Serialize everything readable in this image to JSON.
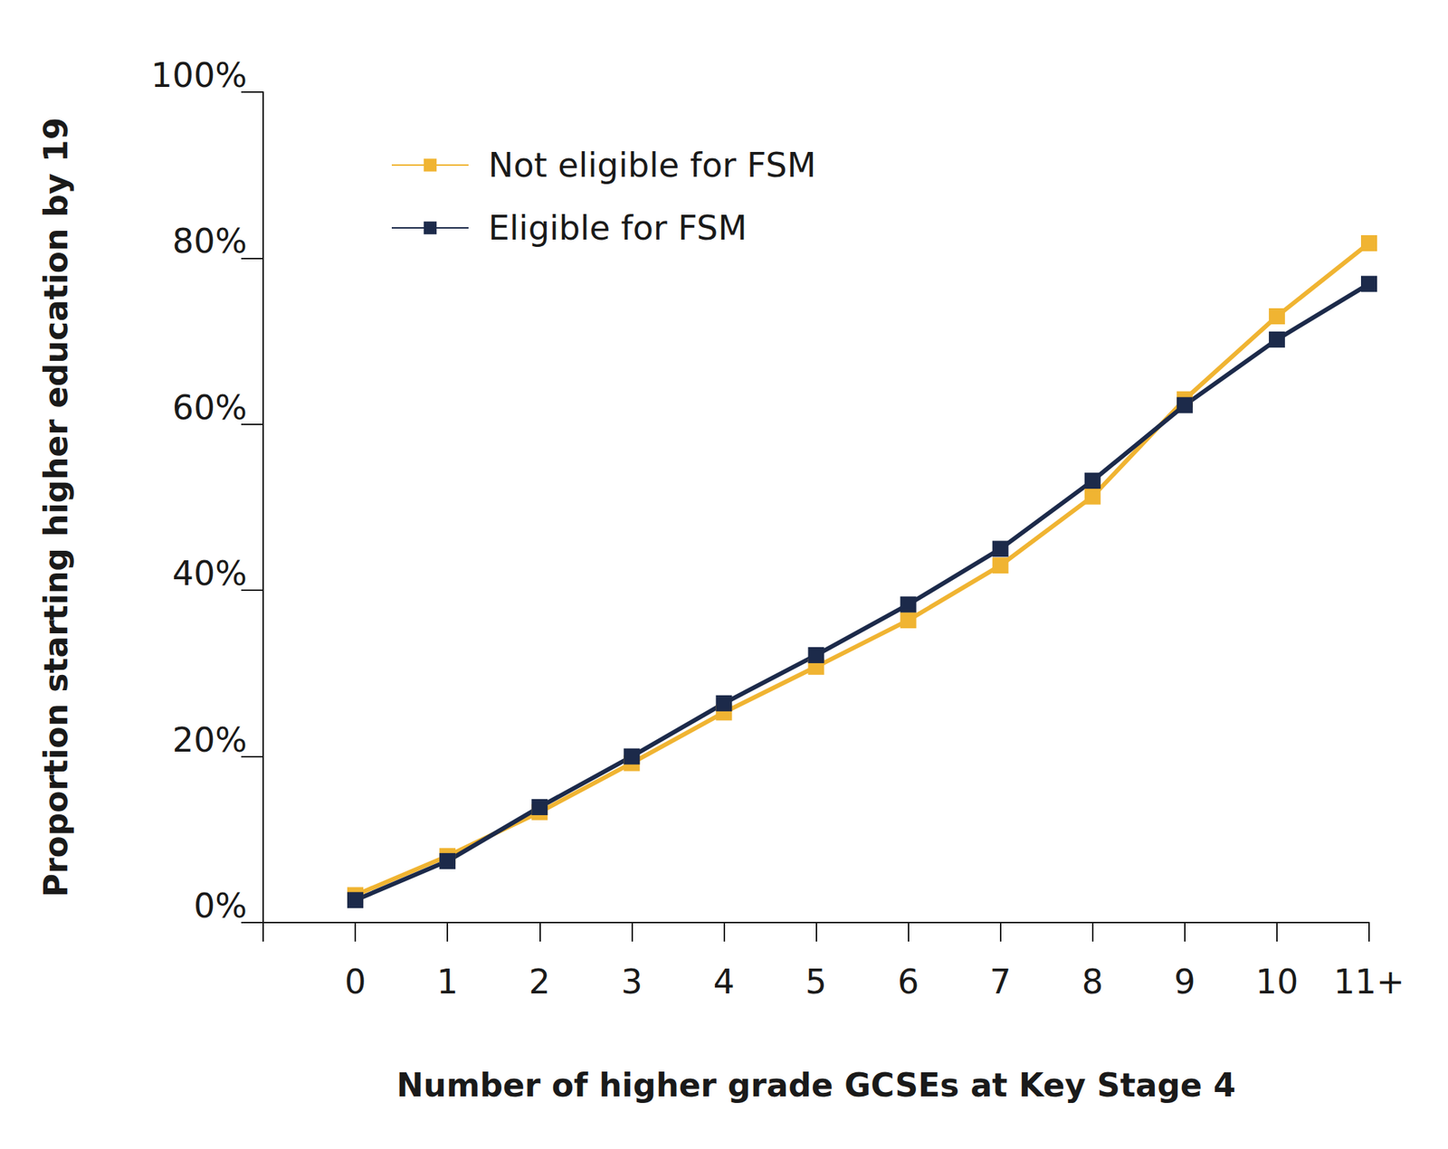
{
  "chart_data": {
    "type": "line",
    "x_label": "Number of higher grade GCSEs at Key Stage 4",
    "y_label": "Proportion starting higher education by 19",
    "categories": [
      null,
      "0",
      "1",
      "2",
      "3",
      "4",
      "5",
      "6",
      "7",
      "8",
      "9",
      "10",
      "11+"
    ],
    "series": [
      {
        "name": "Not eligible for FSM",
        "color": "#f0b432",
        "values": [
          null,
          3.3,
          8,
          13.3,
          19.2,
          25.3,
          30.8,
          36.4,
          43,
          51.3,
          63,
          73,
          81.8
        ]
      },
      {
        "name": "Eligible for FSM",
        "color": "#1c2a4a",
        "values": [
          null,
          2.7,
          7.4,
          13.9,
          20,
          26.4,
          32.2,
          38.3,
          45,
          53.2,
          62.3,
          70.2,
          76.9
        ]
      }
    ],
    "ylim": [
      0,
      100
    ],
    "yticks": [
      {
        "value": 0,
        "label": "0%"
      },
      {
        "value": 20,
        "label": "20%"
      },
      {
        "value": 40,
        "label": "40%"
      },
      {
        "value": 60,
        "label": "60%"
      },
      {
        "value": 80,
        "label": "80%"
      },
      {
        "value": 100,
        "label": "100%"
      }
    ],
    "grid": false,
    "legend": "upper left",
    "marker": "square"
  }
}
